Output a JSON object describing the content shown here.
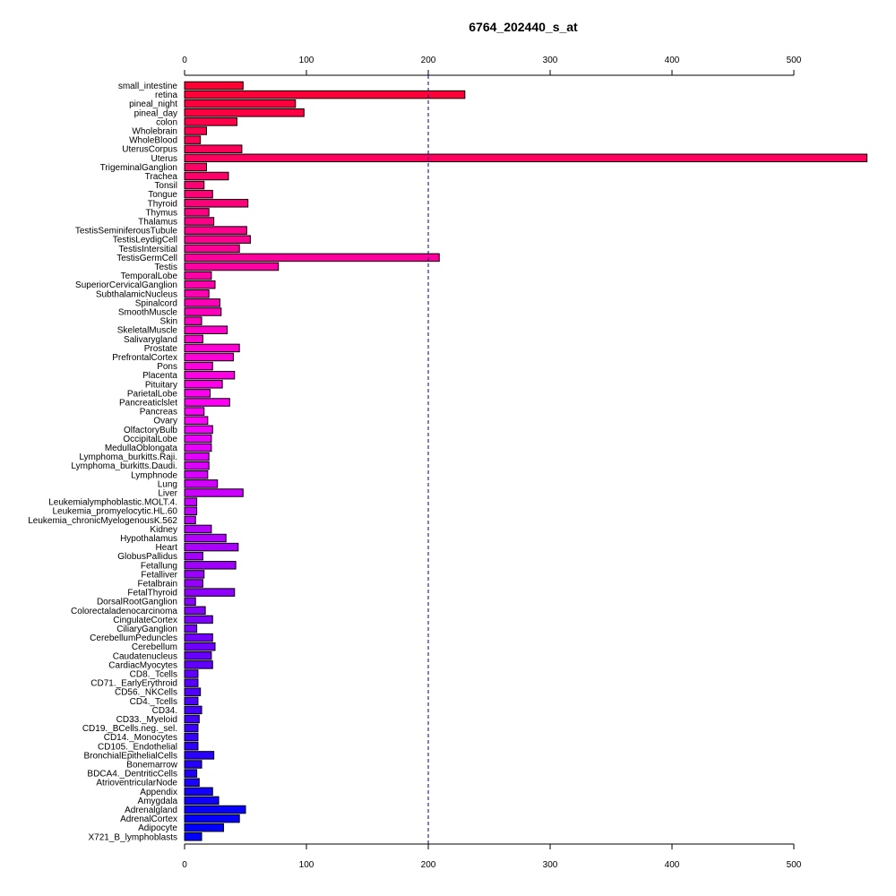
{
  "chart_data": {
    "type": "bar",
    "orientation": "horizontal",
    "title": "6764_202440_s_at",
    "xlabel": "",
    "ylabel": "",
    "xlim": [
      0,
      560
    ],
    "xticks": [
      0,
      100,
      200,
      300,
      400,
      500
    ],
    "reference_line": 200,
    "axes_positions": [
      "top",
      "bottom"
    ],
    "grid": false,
    "legend": "none",
    "categories": [
      "small_intestine",
      "retina",
      "pineal_night",
      "pineal_day",
      "colon",
      "Wholebrain",
      "WholeBlood",
      "UterusCorpus",
      "Uterus",
      "TrigeminalGanglion",
      "Trachea",
      "Tonsil",
      "Tongue",
      "Thyroid",
      "Thymus",
      "Thalamus",
      "TestisSeminiferousTubule",
      "TestisLeydigCell",
      "TestisIntersitial",
      "TestisGermCell",
      "Testis",
      "TemporalLobe",
      "SuperiorCervicalGanglion",
      "SubthalamicNucleus",
      "Spinalcord",
      "SmoothMuscle",
      "Skin",
      "SkeletalMuscle",
      "Salivarygland",
      "Prostate",
      "PrefrontalCortex",
      "Pons",
      "Placenta",
      "Pituitary",
      "ParietalLobe",
      "Pancreaticlslet",
      "Pancreas",
      "Ovary",
      "OlfactoryBulb",
      "OccipitalLobe",
      "MedullaOblongata",
      "Lymphoma_burkitts.Raji.",
      "Lymphoma_burkitts.Daudi.",
      "Lymphnode",
      "Lung",
      "Liver",
      "Leukemialymphoblastic.MOLT.4.",
      "Leukemia_promyelocytic.HL.60",
      "Leukemia_chronicMyelogenousK.562",
      "Kidney",
      "Hypothalamus",
      "Heart",
      "GlobusPallidus",
      "Fetallung",
      "Fetalliver",
      "Fetalbrain",
      "FetalThyroid",
      "DorsalRootGanglion",
      "Colorectaladenocarcinoma",
      "CingulateCortex",
      "CiliaryGanglion",
      "CerebellumPeduncles",
      "Cerebellum",
      "Caudatenucleus",
      "CardiacMyocytes",
      "CD8._Tcells",
      "CD71._EarlyErythroid",
      "CD56._NKCells",
      "CD4._Tcells",
      "CD34.",
      "CD33._Myeloid",
      "CD19._BCells.neg._sel.",
      "CD14._Monocytes",
      "CD105._Endothelial",
      "BronchialEpithelialCells",
      "Bonemarrow",
      "BDCA4._DentriticCells",
      "AtrioventricularNode",
      "Appendix",
      "Amygdala",
      "Adrenalgland",
      "AdrenalCortex",
      "Adipocyte",
      "X721_B_lymphoblasts"
    ],
    "values": [
      48,
      230,
      91,
      98,
      43,
      18,
      13,
      47,
      563,
      18,
      36,
      16,
      23,
      52,
      20,
      24,
      51,
      54,
      45,
      209,
      77,
      22,
      25,
      20,
      29,
      30,
      14,
      35,
      15,
      45,
      40,
      23,
      41,
      31,
      21,
      37,
      16,
      19,
      23,
      22,
      22,
      20,
      20,
      19,
      27,
      48,
      10,
      10,
      9,
      22,
      34,
      44,
      15,
      42,
      16,
      15,
      41,
      9,
      17,
      23,
      10,
      23,
      25,
      22,
      23,
      11,
      11,
      13,
      11,
      14,
      12,
      11,
      11,
      11,
      24,
      14,
      10,
      12,
      23,
      28,
      50,
      45,
      32,
      14
    ],
    "colors": [
      "#FF0033",
      "#FF0038",
      "#FF003E",
      "#FF0043",
      "#FF0049",
      "#FF004E",
      "#FF0054",
      "#FF0059",
      "#FF005F",
      "#FF0065",
      "#FF006A",
      "#FF0070",
      "#FF0075",
      "#FF007B",
      "#FF0080",
      "#FF0086",
      "#FF008C",
      "#FF0091",
      "#FF0097",
      "#FF009C",
      "#FF00A2",
      "#FF00A7",
      "#FF00AD",
      "#FF00B2",
      "#FF00B8",
      "#FF00BE",
      "#FF00C3",
      "#FF00C9",
      "#FF00CE",
      "#FF00D4",
      "#FF00D9",
      "#FF00DF",
      "#FF00E5",
      "#FF00EA",
      "#FF00F0",
      "#FF00F5",
      "#FF00FB",
      "#FF00FF",
      "#F400FF",
      "#EE00FF",
      "#E800FF",
      "#E300FF",
      "#DD00FF",
      "#D800FF",
      "#D200FF",
      "#CC00FF",
      "#C700FF",
      "#C100FF",
      "#BC00FF",
      "#B600FF",
      "#B100FF",
      "#AB00FF",
      "#A500FF",
      "#A000FF",
      "#9A00FF",
      "#9500FF",
      "#8F00FF",
      "#8900FF",
      "#8400FF",
      "#7E00FF",
      "#7900FF",
      "#7300FF",
      "#6E00FF",
      "#6800FF",
      "#6200FF",
      "#5D00FF",
      "#5700FF",
      "#5200FF",
      "#4C00FF",
      "#4600FF",
      "#4100FF",
      "#3B00FF",
      "#3600FF",
      "#3000FF",
      "#2A00FF",
      "#2500FF",
      "#1F00FF",
      "#1A00FF",
      "#1400FF",
      "#0F00FF",
      "#0900FF",
      "#0300FF",
      "#0000FF",
      "#0000FF"
    ]
  }
}
